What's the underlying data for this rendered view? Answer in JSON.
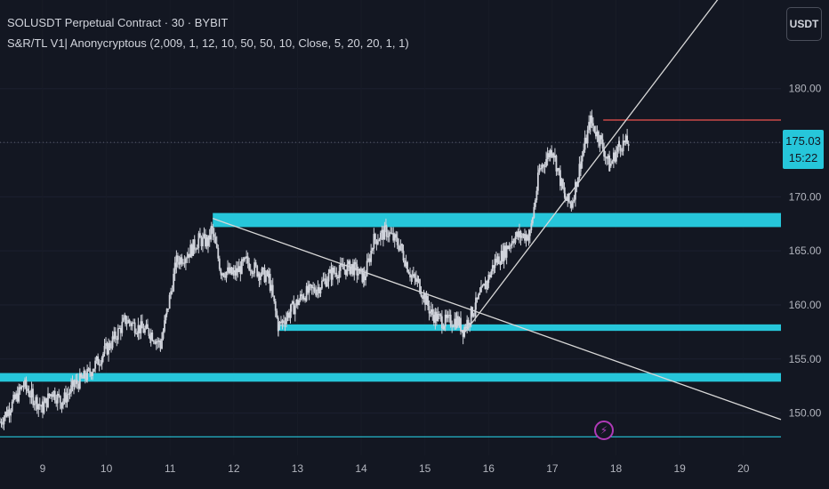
{
  "header": {
    "symbol_line": "SOLUSDT Perpetual Contract · 30 · BYBIT",
    "indicator_line": "S&R/TL V1| Anonycryptous (2,009, 1, 12, 10, 50, 50, 10, Close, 5, 20, 20, 1, 1)"
  },
  "currency_button": "USDT",
  "last_price": {
    "price": "175.03",
    "countdown": "15:22"
  },
  "event_icon": "lightning-icon",
  "colors": {
    "background": "#131722",
    "candle": "#d1d4dc",
    "support_resistance": "#26c6da",
    "trendline": "#d8d8d8",
    "resistance_line": "#ef5350",
    "price_tag": "#26c6da",
    "event": "#b03ab7"
  },
  "chart_data": {
    "type": "line",
    "x_tick_labels": [
      "9",
      "10",
      "11",
      "12",
      "13",
      "14",
      "15",
      "16",
      "17",
      "18",
      "19",
      "20"
    ],
    "y_tick_labels": [
      "180.00",
      "175.00",
      "170.00",
      "165.00",
      "160.00",
      "155.00",
      "150.00"
    ],
    "y_ticks": [
      180,
      175,
      170,
      165,
      160,
      155,
      150
    ],
    "ylim": [
      146.1,
      188.2
    ],
    "xlim": [
      8.33,
      20.59
    ],
    "price_path": [
      [
        8.33,
        149.2
      ],
      [
        8.5,
        150.6
      ],
      [
        8.7,
        152.6
      ],
      [
        8.85,
        151.4
      ],
      [
        9.0,
        150.5
      ],
      [
        9.15,
        152.0
      ],
      [
        9.3,
        151.0
      ],
      [
        9.5,
        152.6
      ],
      [
        9.7,
        153.5
      ],
      [
        9.95,
        155.5
      ],
      [
        10.1,
        156.7
      ],
      [
        10.3,
        158.6
      ],
      [
        10.5,
        157.9
      ],
      [
        10.7,
        157.4
      ],
      [
        10.85,
        156.3
      ],
      [
        10.95,
        159.3
      ],
      [
        11.1,
        164.0
      ],
      [
        11.3,
        164.9
      ],
      [
        11.45,
        166.0
      ],
      [
        11.6,
        165.8
      ],
      [
        11.65,
        167.0
      ],
      [
        11.8,
        163.2
      ],
      [
        12.0,
        162.8
      ],
      [
        12.2,
        164.0
      ],
      [
        12.4,
        163.0
      ],
      [
        12.55,
        162.5
      ],
      [
        12.7,
        158.0
      ],
      [
        12.9,
        159.5
      ],
      [
        13.1,
        161.0
      ],
      [
        13.3,
        161.5
      ],
      [
        13.55,
        163.0
      ],
      [
        13.85,
        163.5
      ],
      [
        14.05,
        162.5
      ],
      [
        14.2,
        166.0
      ],
      [
        14.4,
        166.8
      ],
      [
        14.6,
        165.5
      ],
      [
        14.8,
        162.5
      ],
      [
        14.9,
        162.0
      ],
      [
        15.1,
        159.2
      ],
      [
        15.3,
        158.4
      ],
      [
        15.5,
        158.6
      ],
      [
        15.6,
        157.7
      ],
      [
        15.8,
        160.0
      ],
      [
        16.0,
        162.5
      ],
      [
        16.1,
        164.0
      ],
      [
        16.2,
        164.5
      ],
      [
        16.4,
        166.3
      ],
      [
        16.65,
        166.5
      ],
      [
        16.8,
        172.5
      ],
      [
        17.0,
        174.5
      ],
      [
        17.2,
        169.8
      ],
      [
        17.3,
        169.3
      ],
      [
        17.45,
        173.3
      ],
      [
        17.6,
        177.0
      ],
      [
        17.75,
        175.3
      ],
      [
        17.9,
        172.8
      ],
      [
        18.05,
        174.8
      ],
      [
        18.2,
        175.03
      ]
    ],
    "support_resistance_zones": [
      [
        167.2,
        168.5
      ],
      [
        152.9,
        153.7
      ],
      [
        157.6,
        158.2
      ]
    ],
    "horizontal_lines": [
      {
        "kind": "resistance",
        "y": 177.1,
        "x_start": 17.8,
        "x_end": 20.59
      },
      {
        "kind": "support",
        "y": 147.8,
        "x_start": 8.33,
        "x_end": 20.59
      }
    ],
    "trendlines": [
      {
        "x1": 15.63,
        "y1": 157.5,
        "x2": 19.85,
        "y2": 190.2
      },
      {
        "x1": 11.67,
        "y1": 168.0,
        "x2": 20.59,
        "y2": 149.4
      }
    ],
    "last_price": 175.03
  }
}
